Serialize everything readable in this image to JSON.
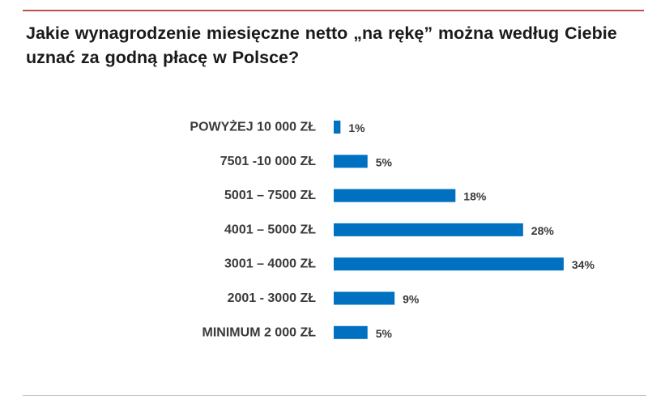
{
  "title": "Jakie wynagrodzenie miesięczne netto „na rękę” można według Ciebie uznać za godną płacę w Polsce?",
  "colors": {
    "bar": "#0070c0",
    "accent_rule": "#c0504d"
  },
  "chart_data": {
    "type": "bar",
    "orientation": "horizontal",
    "title": "Jakie wynagrodzenie miesięczne netto „na rękę” można według Ciebie uznać za godną płacę w Polsce?",
    "categories": [
      "POWYŻEJ 10 000 ZŁ",
      "7501 -10 000 ZŁ",
      "5001 – 7500 ZŁ",
      "4001 – 5000 ZŁ",
      "3001 – 4000 ZŁ",
      "2001 - 3000 ZŁ",
      "MINIMUM 2 000 ZŁ"
    ],
    "values": [
      1,
      5,
      18,
      28,
      34,
      9,
      5
    ],
    "value_labels": [
      "1%",
      "5%",
      "18%",
      "28%",
      "34%",
      "9%",
      "5%"
    ],
    "unit": "%",
    "xlim": [
      0,
      34
    ],
    "grid": false,
    "legend": "none"
  }
}
